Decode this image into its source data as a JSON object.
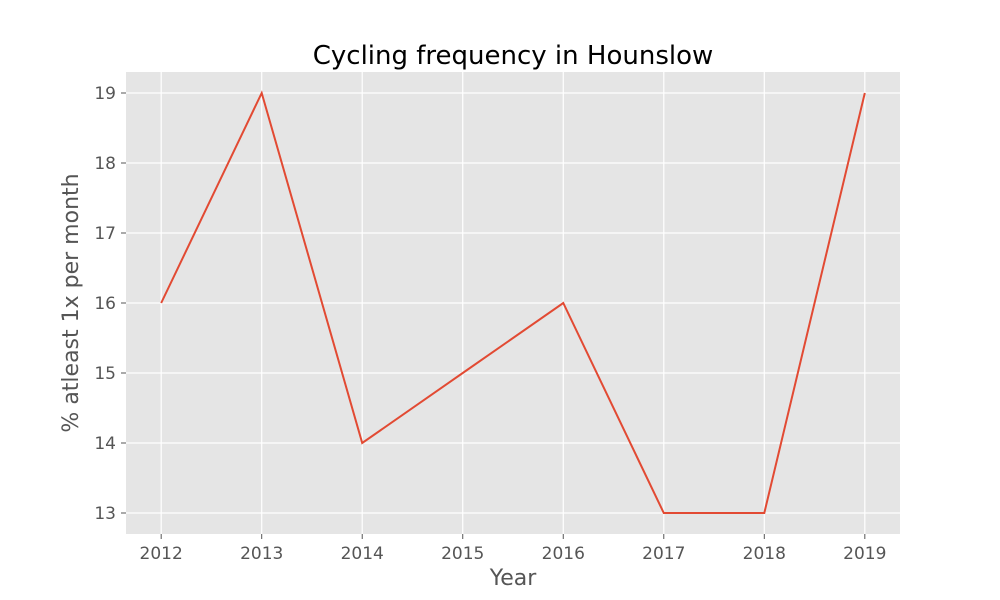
{
  "chart_data": {
    "type": "line",
    "title": "Cycling frequency in Hounslow",
    "xlabel": "Year",
    "ylabel": "% atleast 1x per month",
    "x": [
      2012,
      2013,
      2014,
      2015,
      2016,
      2017,
      2018,
      2019
    ],
    "series": [
      {
        "values": [
          16,
          19,
          14,
          15,
          16,
          13,
          13,
          19
        ]
      }
    ],
    "xlim": [
      2011.65,
      2019.35
    ],
    "ylim": [
      12.7,
      19.3
    ],
    "xticks": [
      "2012",
      "2013",
      "2014",
      "2015",
      "2016",
      "2017",
      "2018",
      "2019"
    ],
    "yticks": [
      "13",
      "14",
      "15",
      "16",
      "17",
      "18",
      "19"
    ],
    "grid": true,
    "legend": "none"
  },
  "colors": {
    "plot_background": "#e5e5e5",
    "series": "#e24a33"
  }
}
